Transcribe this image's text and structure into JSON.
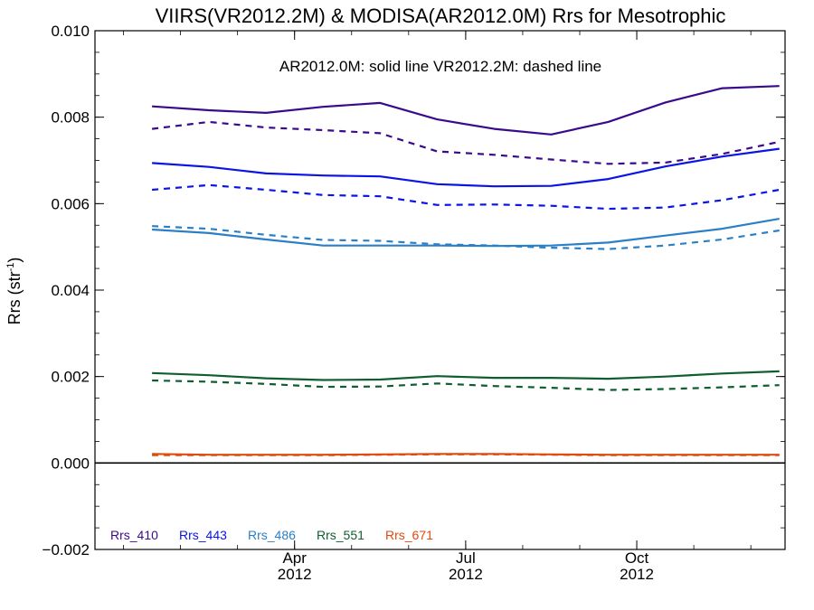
{
  "chart_data": {
    "type": "line",
    "title": "VIIRS(VR2012.2M) & MODISA(AR2012.0M)  Rrs for Mesotrophic",
    "annotation": "AR2012.0M: solid line   VR2012.2M: dashed line",
    "ylabel_main": "Rrs (str",
    "ylabel_sup": "-1",
    "ylabel_close": ")",
    "xlabel": "",
    "x_months": [
      1.5,
      2.5,
      3.5,
      4.5,
      5.5,
      6.5,
      7.5,
      8.5,
      9.5,
      10.5,
      11.5,
      12.5
    ],
    "xlim": [
      0.5,
      12.6
    ],
    "ylim": [
      -0.002,
      0.01
    ],
    "y_ticks": [
      -0.002,
      0.0,
      0.002,
      0.004,
      0.006,
      0.008,
      0.01
    ],
    "y_tick_labels": [
      "−0.002",
      "0.000",
      "0.002",
      "0.004",
      "0.006",
      "0.008",
      "0.010"
    ],
    "x_ticks": [
      {
        "month": 4,
        "label": "Apr",
        "year": "2012"
      },
      {
        "month": 7,
        "label": "Jul",
        "year": "2012"
      },
      {
        "month": 10,
        "label": "Oct",
        "year": "2012"
      }
    ],
    "zero_line": 0.0,
    "series": [
      {
        "name": "Rrs_410",
        "color": "#3a0a8c",
        "style": "solid",
        "values": [
          0.00825,
          0.00816,
          0.0081,
          0.00824,
          0.00833,
          0.00795,
          0.00773,
          0.0076,
          0.00789,
          0.00834,
          0.00867,
          0.00872
        ]
      },
      {
        "name": "Rrs_410",
        "color": "#3a0a8c",
        "style": "dashed",
        "values": [
          0.00773,
          0.00789,
          0.00776,
          0.0077,
          0.00763,
          0.00721,
          0.00713,
          0.00702,
          0.00692,
          0.00695,
          0.00715,
          0.00743
        ]
      },
      {
        "name": "Rrs_443",
        "color": "#0a14e6",
        "style": "solid",
        "values": [
          0.00694,
          0.00685,
          0.0067,
          0.00665,
          0.00663,
          0.00645,
          0.0064,
          0.00641,
          0.00657,
          0.00686,
          0.00709,
          0.00727
        ]
      },
      {
        "name": "Rrs_443",
        "color": "#0a14e6",
        "style": "dashed",
        "values": [
          0.00632,
          0.00643,
          0.00632,
          0.0062,
          0.00617,
          0.00597,
          0.00598,
          0.00595,
          0.00588,
          0.00591,
          0.00608,
          0.00632
        ]
      },
      {
        "name": "Rrs_486",
        "color": "#2a7fc6",
        "style": "solid",
        "values": [
          0.0054,
          0.00532,
          0.00517,
          0.00503,
          0.00503,
          0.00503,
          0.00502,
          0.00503,
          0.0051,
          0.00526,
          0.00542,
          0.00565
        ]
      },
      {
        "name": "Rrs_486",
        "color": "#2a7fc6",
        "style": "dashed",
        "values": [
          0.00548,
          0.00542,
          0.00528,
          0.00516,
          0.00514,
          0.00506,
          0.00503,
          0.00498,
          0.00495,
          0.00503,
          0.00517,
          0.00538
        ]
      },
      {
        "name": "Rrs_551",
        "color": "#0e5e2e",
        "style": "solid",
        "values": [
          0.00208,
          0.00203,
          0.00196,
          0.00192,
          0.00193,
          0.00201,
          0.00197,
          0.00197,
          0.00195,
          0.002,
          0.00207,
          0.00212
        ]
      },
      {
        "name": "Rrs_551",
        "color": "#0e5e2e",
        "style": "dashed",
        "values": [
          0.00191,
          0.00188,
          0.00183,
          0.00176,
          0.00177,
          0.00184,
          0.00178,
          0.00174,
          0.00169,
          0.00171,
          0.00175,
          0.0018
        ]
      },
      {
        "name": "Rrs_671",
        "color": "#e04a0c",
        "style": "solid",
        "values": [
          0.00021,
          0.00019,
          0.00019,
          0.00019,
          0.0002,
          0.00021,
          0.00021,
          0.0002,
          0.00019,
          0.00019,
          0.00019,
          0.00019
        ]
      },
      {
        "name": "Rrs_671",
        "color": "#e04a0c",
        "style": "dashed",
        "values": [
          0.00018,
          0.00018,
          0.00018,
          0.00018,
          0.00019,
          0.0002,
          0.0002,
          0.00019,
          0.00018,
          0.00018,
          0.00018,
          0.00018
        ]
      }
    ],
    "legend": [
      {
        "label": "Rrs_410",
        "color": "#3a0a8c"
      },
      {
        "label": "Rrs_443",
        "color": "#0a14e6"
      },
      {
        "label": "Rrs_486",
        "color": "#2a7fc6"
      },
      {
        "label": "Rrs_551",
        "color": "#0e5e2e"
      },
      {
        "label": "Rrs_671",
        "color": "#e04a0c"
      }
    ],
    "legend_placement": "bottom-left",
    "grid": false
  }
}
